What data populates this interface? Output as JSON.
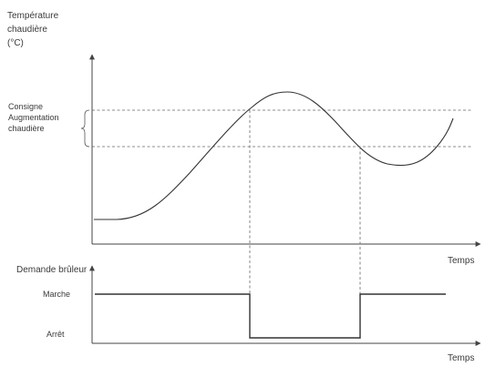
{
  "top_chart": {
    "y_label_lines": [
      "Température",
      "chaudière",
      "(°C)"
    ],
    "x_label": "Temps",
    "setpoint_label_lines": [
      "Consigne",
      "Augmentation",
      "chaudière"
    ]
  },
  "bottom_chart": {
    "y_label": "Demande brûleur",
    "level_high": "Marche",
    "level_low": "Arrêt",
    "x_label": "Temps"
  },
  "colors": {
    "line": "#333333",
    "text": "#3a3a3a",
    "dashed": "#666666"
  }
}
